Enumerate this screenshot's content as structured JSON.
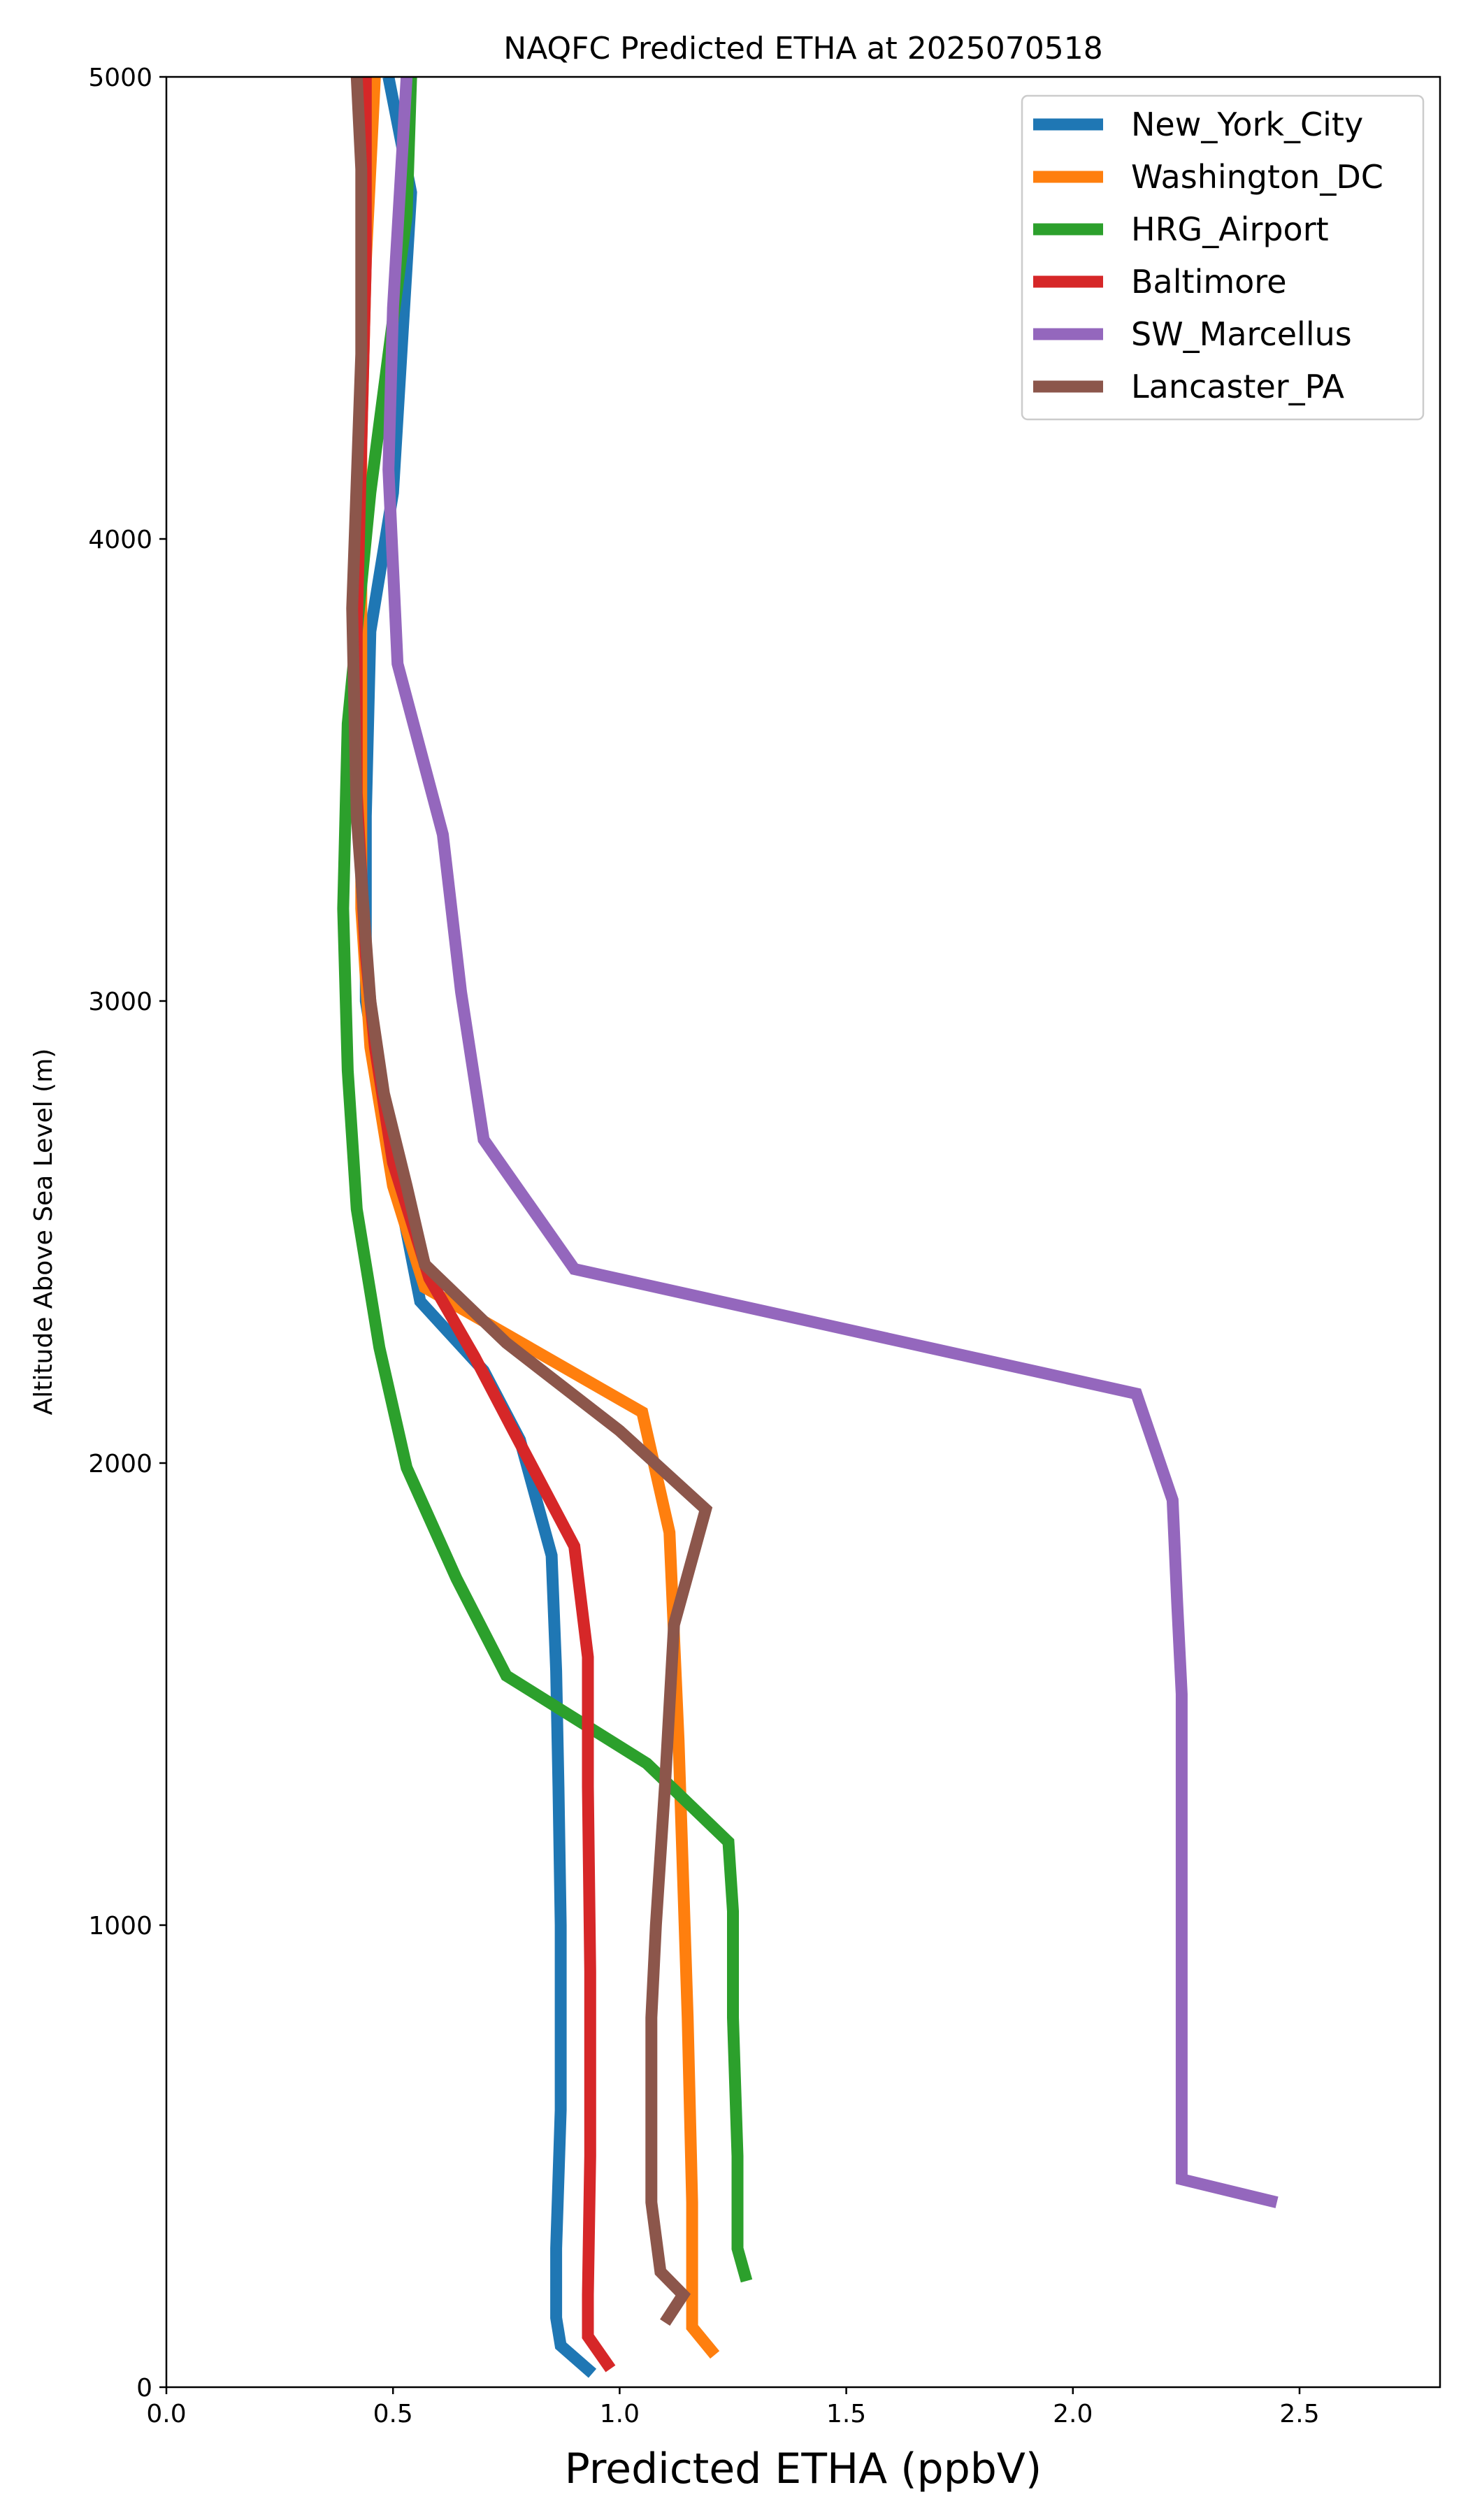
{
  "chart_data": {
    "type": "line",
    "title": "NAQFC Predicted ETHA at 2025070518",
    "xlabel": "Predicted ETHA (ppbV)",
    "ylabel": "Altitude Above Sea Level (m)",
    "xlim": [
      0.0,
      2.81
    ],
    "ylim": [
      0,
      5000
    ],
    "xticks": [
      0.0,
      0.5,
      1.0,
      1.5,
      2.0,
      2.5
    ],
    "xtick_labels": [
      "0.0",
      "0.5",
      "1.0",
      "1.5",
      "2.0",
      "2.5"
    ],
    "yticks": [
      0,
      1000,
      2000,
      3000,
      4000,
      5000
    ],
    "ytick_labels": [
      "0",
      "1000",
      "2000",
      "3000",
      "4000",
      "5000"
    ],
    "grid": false,
    "legend_position": "top-right",
    "series": [
      {
        "name": "New_York_City",
        "color": "#1f77b4",
        "points": [
          [
            0.94,
            30
          ],
          [
            0.87,
            90
          ],
          [
            0.86,
            150
          ],
          [
            0.86,
            300
          ],
          [
            0.87,
            600
          ],
          [
            0.87,
            1000
          ],
          [
            0.865,
            1300
          ],
          [
            0.86,
            1550
          ],
          [
            0.85,
            1800
          ],
          [
            0.78,
            2050
          ],
          [
            0.7,
            2200
          ],
          [
            0.56,
            2350
          ],
          [
            0.5,
            2650
          ],
          [
            0.44,
            3000
          ],
          [
            0.44,
            3400
          ],
          [
            0.45,
            3800
          ],
          [
            0.5,
            4100
          ],
          [
            0.54,
            4750
          ],
          [
            0.49,
            5000
          ]
        ]
      },
      {
        "name": "Washington_DC",
        "color": "#ff7f0e",
        "points": [
          [
            1.21,
            70
          ],
          [
            1.16,
            130
          ],
          [
            1.16,
            400
          ],
          [
            1.15,
            800
          ],
          [
            1.14,
            1100
          ],
          [
            1.13,
            1400
          ],
          [
            1.11,
            1850
          ],
          [
            1.05,
            2110
          ],
          [
            0.57,
            2380
          ],
          [
            0.5,
            2600
          ],
          [
            0.45,
            2900
          ],
          [
            0.43,
            3200
          ],
          [
            0.43,
            3500
          ],
          [
            0.43,
            3800
          ],
          [
            0.43,
            4200
          ],
          [
            0.44,
            4600
          ],
          [
            0.46,
            5000
          ]
        ]
      },
      {
        "name": "HRG_Airport",
        "color": "#2ca02c",
        "points": [
          [
            1.28,
            230
          ],
          [
            1.26,
            300
          ],
          [
            1.26,
            500
          ],
          [
            1.25,
            800
          ],
          [
            1.25,
            1030
          ],
          [
            1.24,
            1180
          ],
          [
            1.06,
            1350
          ],
          [
            0.75,
            1540
          ],
          [
            0.64,
            1750
          ],
          [
            0.53,
            1990
          ],
          [
            0.47,
            2250
          ],
          [
            0.42,
            2550
          ],
          [
            0.4,
            2850
          ],
          [
            0.39,
            3200
          ],
          [
            0.4,
            3600
          ],
          [
            0.45,
            4100
          ],
          [
            0.53,
            4700
          ],
          [
            0.54,
            5000
          ]
        ]
      },
      {
        "name": "Baltimore",
        "color": "#d62728",
        "points": [
          [
            0.98,
            40
          ],
          [
            0.93,
            110
          ],
          [
            0.93,
            200
          ],
          [
            0.935,
            500
          ],
          [
            0.935,
            900
          ],
          [
            0.93,
            1300
          ],
          [
            0.93,
            1580
          ],
          [
            0.9,
            1820
          ],
          [
            0.76,
            2080
          ],
          [
            0.68,
            2230
          ],
          [
            0.58,
            2400
          ],
          [
            0.5,
            2650
          ],
          [
            0.46,
            2900
          ],
          [
            0.44,
            3100
          ],
          [
            0.42,
            3450
          ],
          [
            0.42,
            3800
          ],
          [
            0.43,
            4200
          ],
          [
            0.44,
            4600
          ],
          [
            0.44,
            5000
          ]
        ]
      },
      {
        "name": "SW_Marcellus",
        "color": "#9467bd",
        "points": [
          [
            2.45,
            400
          ],
          [
            2.24,
            450
          ],
          [
            2.24,
            500
          ],
          [
            2.24,
            700
          ],
          [
            2.24,
            1000
          ],
          [
            2.24,
            1300
          ],
          [
            2.24,
            1500
          ],
          [
            2.23,
            1700
          ],
          [
            2.22,
            1920
          ],
          [
            2.14,
            2150
          ],
          [
            0.9,
            2420
          ],
          [
            0.7,
            2700
          ],
          [
            0.65,
            3020
          ],
          [
            0.61,
            3360
          ],
          [
            0.51,
            3730
          ],
          [
            0.49,
            4150
          ],
          [
            0.5,
            4500
          ],
          [
            0.53,
            5000
          ]
        ]
      },
      {
        "name": "Lancaster_PA",
        "color": "#8c564b",
        "points": [
          [
            1.1,
            140
          ],
          [
            1.14,
            200
          ],
          [
            1.09,
            250
          ],
          [
            1.07,
            400
          ],
          [
            1.07,
            600
          ],
          [
            1.07,
            800
          ],
          [
            1.08,
            1000
          ],
          [
            1.1,
            1300
          ],
          [
            1.12,
            1650
          ],
          [
            1.19,
            1900
          ],
          [
            1.0,
            2070
          ],
          [
            0.75,
            2260
          ],
          [
            0.57,
            2430
          ],
          [
            0.53,
            2600
          ],
          [
            0.48,
            2800
          ],
          [
            0.45,
            3000
          ],
          [
            0.42,
            3400
          ],
          [
            0.41,
            3850
          ],
          [
            0.43,
            4400
          ],
          [
            0.43,
            4800
          ],
          [
            0.42,
            5000
          ]
        ]
      }
    ]
  }
}
